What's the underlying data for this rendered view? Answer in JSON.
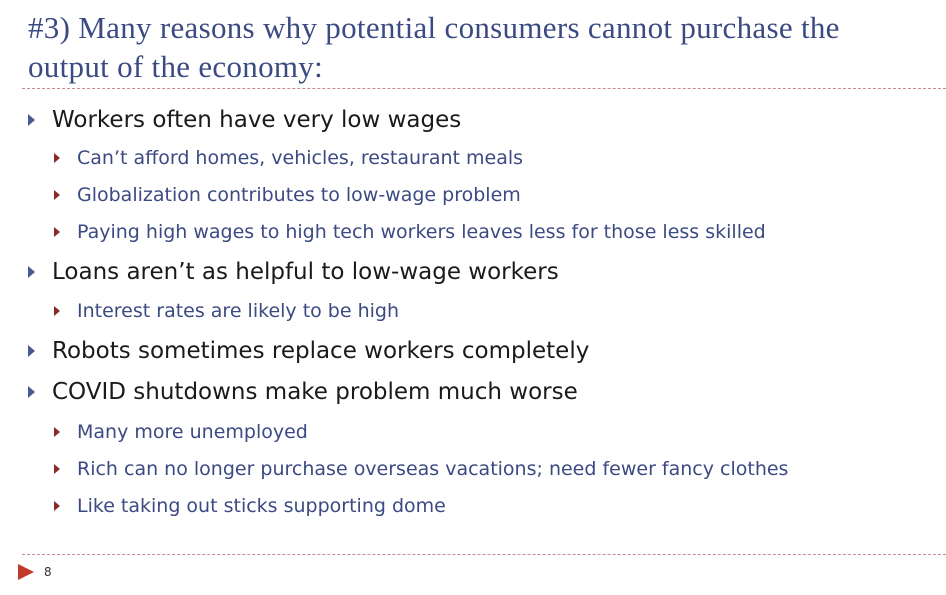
{
  "slide": {
    "title": "#3) Many reasons why potential consumers cannot purchase the output of the economy:",
    "page_number": "8",
    "colors": {
      "title": "#3b4a82",
      "level1_bullet": "#4a5a8c",
      "level2_bullet": "#8c2a2a",
      "level2_text": "#3b4a82",
      "rule": "#c98a8a",
      "footer_arrow": "#c0392b"
    }
  },
  "bullets": [
    {
      "text": "Workers often have very low wages",
      "children": [
        "Can’t afford homes, vehicles, restaurant meals",
        "Globalization contributes to low-wage problem",
        "Paying high wages to high tech workers leaves less for those less skilled"
      ]
    },
    {
      "text": "Loans aren’t as helpful to low-wage workers",
      "children": [
        "Interest rates are likely to be high"
      ]
    },
    {
      "text": "Robots sometimes replace workers completely",
      "children": []
    },
    {
      "text": "COVID shutdowns make problem much worse",
      "children": [
        "Many more unemployed",
        "Rich can no longer purchase overseas vacations; need fewer fancy clothes",
        "Like taking out sticks supporting dome"
      ]
    }
  ]
}
